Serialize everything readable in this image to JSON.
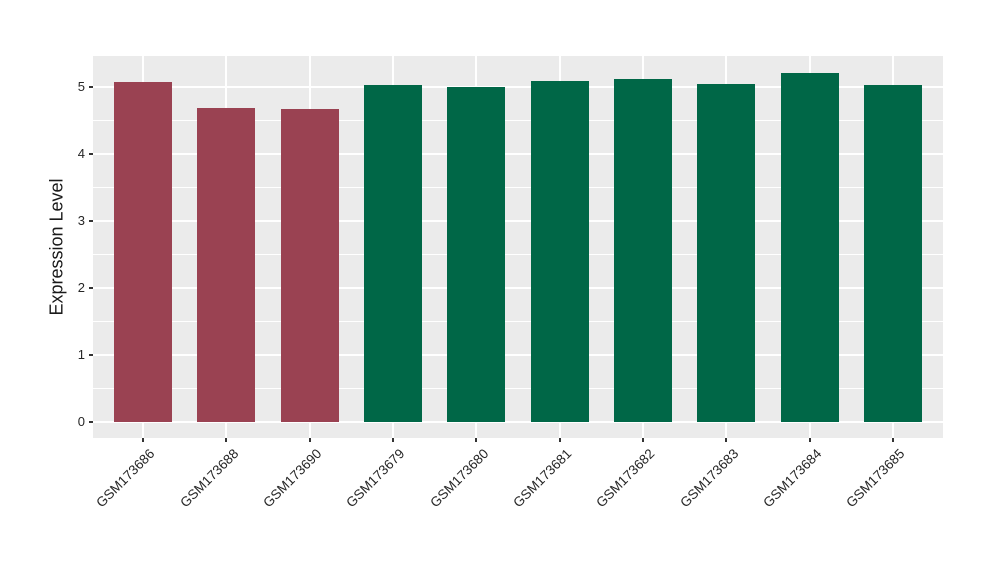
{
  "chart_data": {
    "type": "bar",
    "title": "",
    "xlabel": "",
    "ylabel": "Expression Level",
    "categories": [
      "GSM173686",
      "GSM173688",
      "GSM173690",
      "GSM173679",
      "GSM173680",
      "GSM173681",
      "GSM173682",
      "GSM173683",
      "GSM173684",
      "GSM173685"
    ],
    "values": [
      5.07,
      4.69,
      4.67,
      5.02,
      5.0,
      5.08,
      5.12,
      5.04,
      5.2,
      5.03
    ],
    "bar_colors": [
      "#9A4252",
      "#9A4252",
      "#9A4252",
      "#006747",
      "#006747",
      "#006747",
      "#006747",
      "#006747",
      "#006747",
      "#006747"
    ],
    "yticks": [
      0,
      1,
      2,
      3,
      4,
      5
    ],
    "ylim": [
      -0.24,
      5.46
    ],
    "minor_grid_step": 0.5,
    "bar_width_fraction": 0.7,
    "grid": true,
    "legend_position": "none",
    "x_label_rotation_deg": 45,
    "panel_bg": "#EBEBEB",
    "grid_color": "#FFFFFF",
    "axis_text_color": "#262626",
    "tick_mark_color": "#333333"
  }
}
